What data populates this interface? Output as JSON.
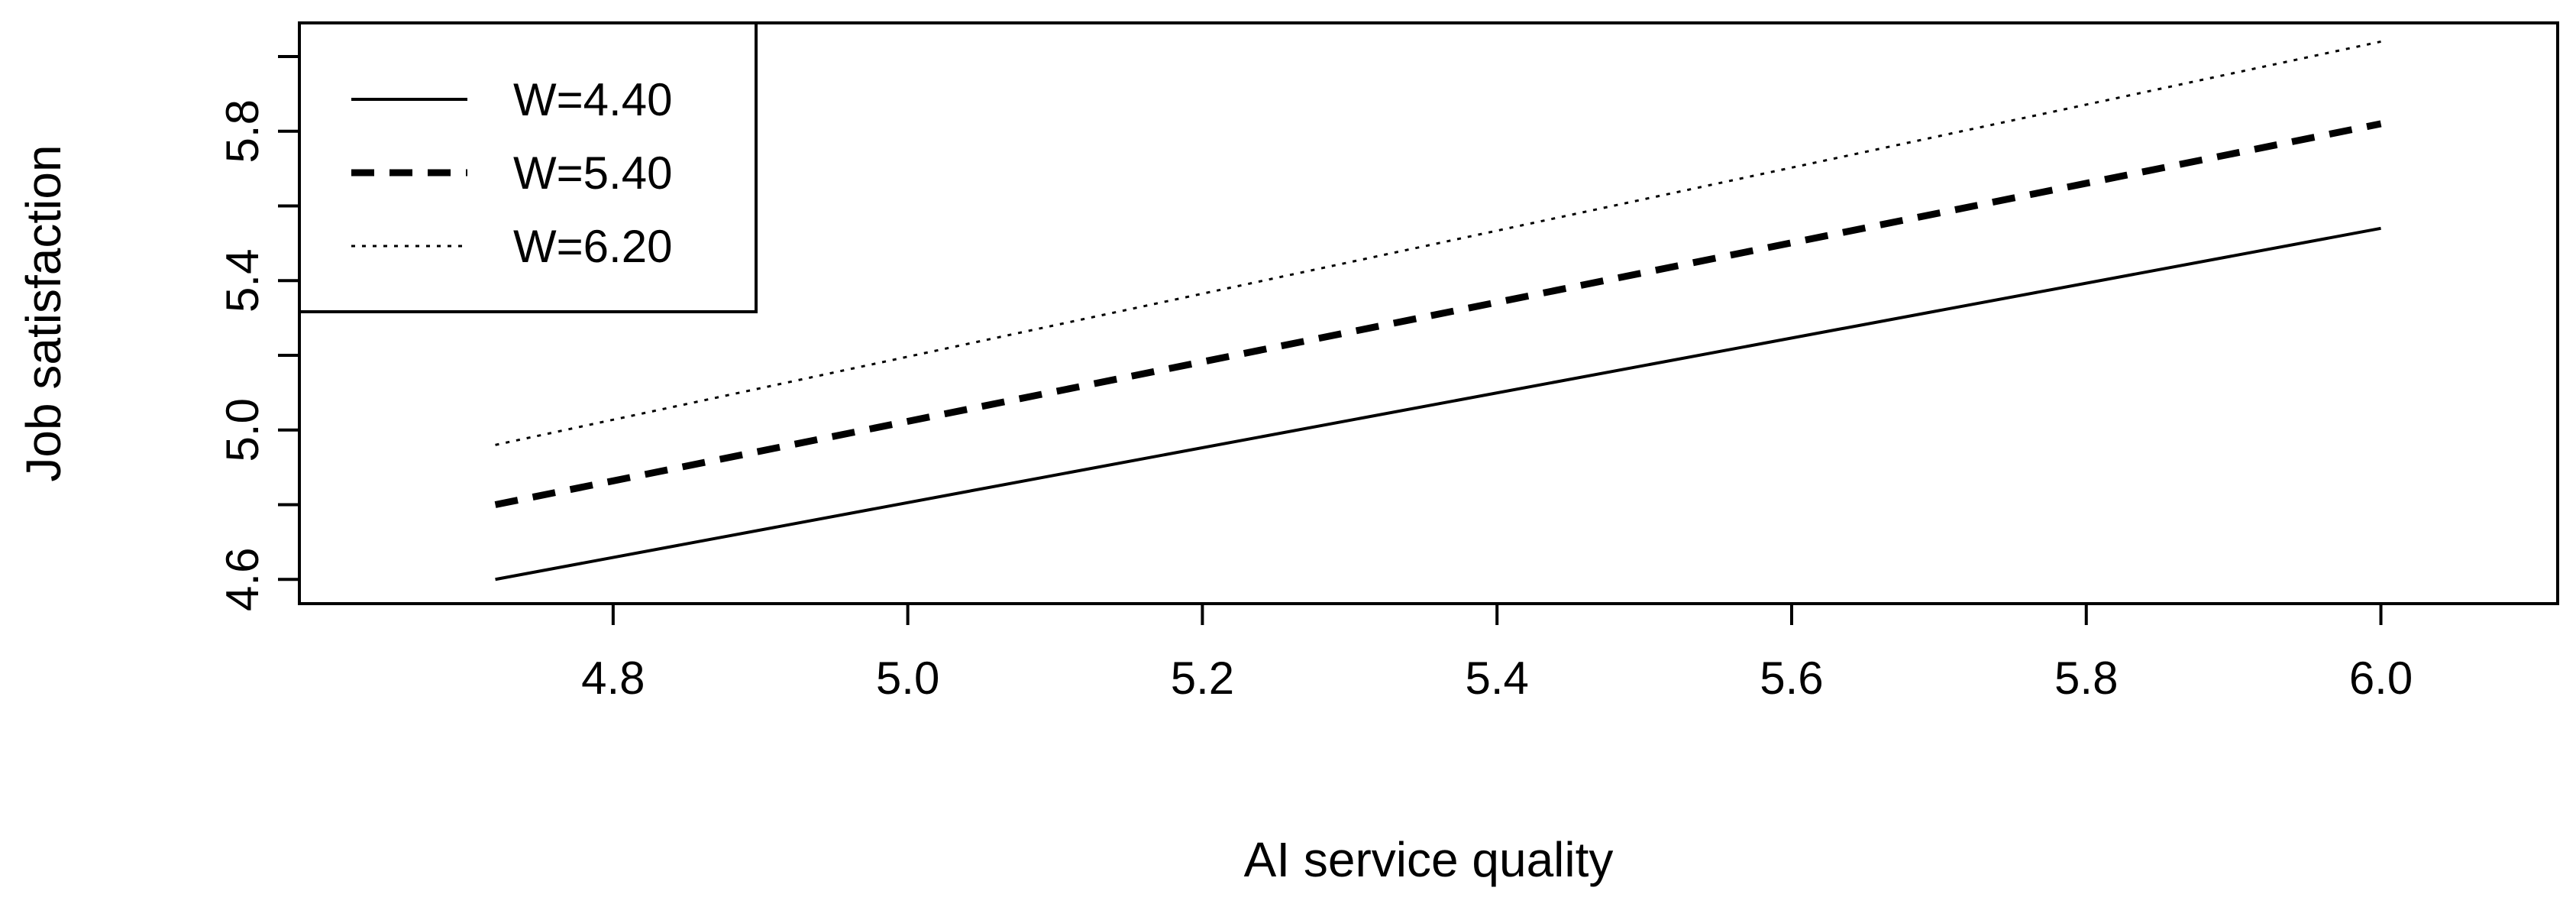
{
  "chart_data": {
    "type": "line",
    "title": "",
    "xlabel": "AI service quality",
    "ylabel": "Job satisfaction",
    "xlim": [
      4.587,
      6.12
    ],
    "ylim": [
      4.535,
      6.09
    ],
    "xticks": [
      4.8,
      5.0,
      5.2,
      5.4,
      5.6,
      5.8,
      6.0
    ],
    "xtick_labels": [
      "4.8",
      "5.0",
      "5.2",
      "5.4",
      "5.6",
      "5.8",
      "6.0"
    ],
    "yticks": [
      4.6,
      4.8,
      5.0,
      5.2,
      5.4,
      5.6,
      5.8,
      6.0
    ],
    "ytick_labels": [
      "4.6",
      "",
      "5.0",
      "",
      "5.4",
      "",
      "5.8",
      ""
    ],
    "grid": false,
    "legend_position": "top-left",
    "series": [
      {
        "name": "W=4.40",
        "style": "solid",
        "x": [
          4.72,
          6.0
        ],
        "y": [
          4.6,
          5.54
        ]
      },
      {
        "name": "W=5.40",
        "style": "dashed",
        "x": [
          4.72,
          6.0
        ],
        "y": [
          4.8,
          5.82
        ]
      },
      {
        "name": "W=6.20",
        "style": "dotted",
        "x": [
          4.72,
          6.0
        ],
        "y": [
          4.96,
          6.04
        ]
      }
    ]
  }
}
